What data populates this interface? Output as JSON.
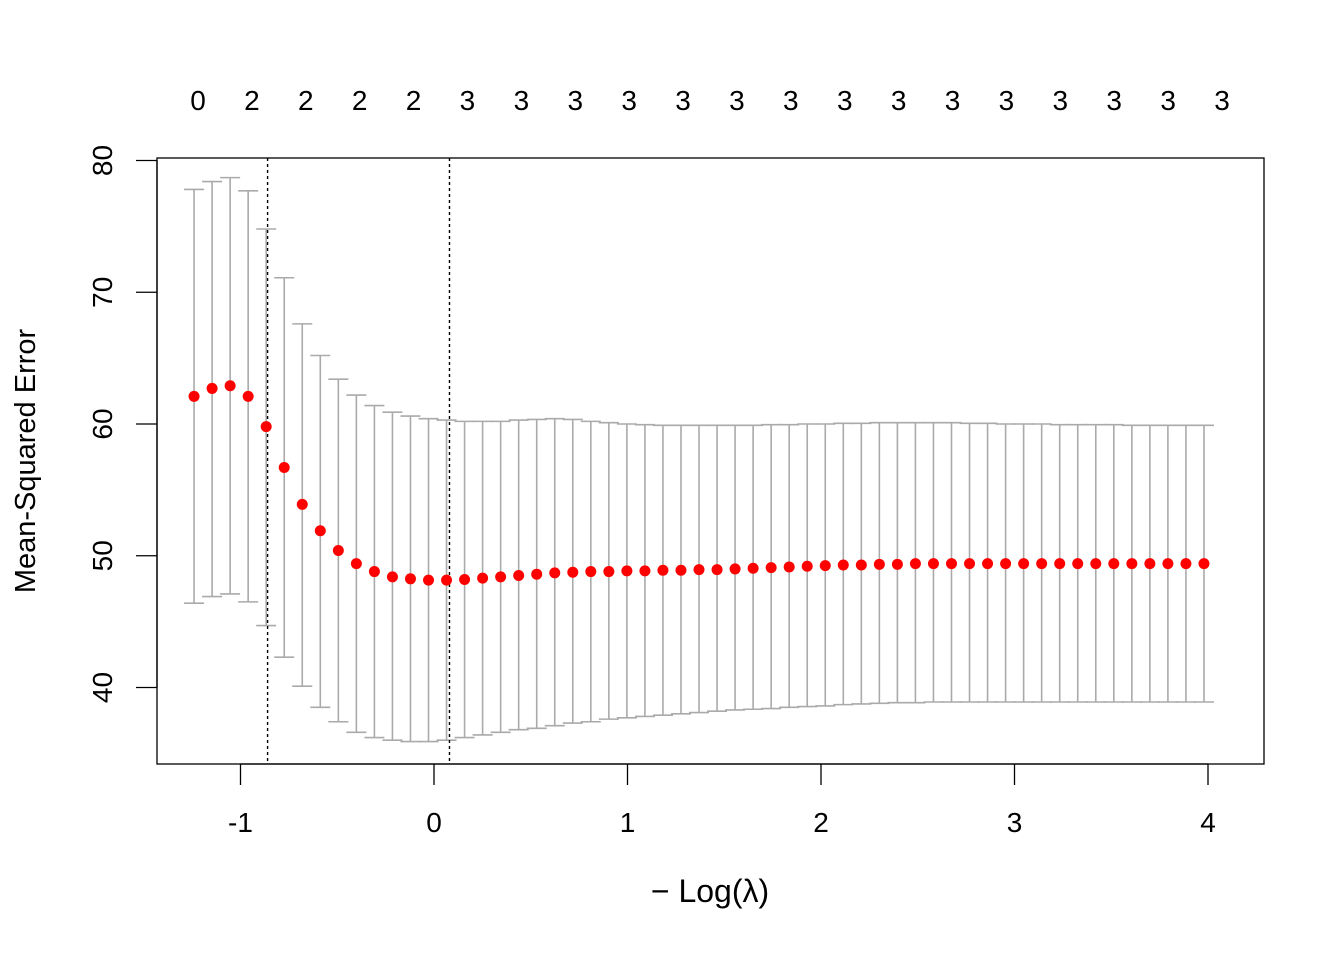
{
  "chart_data": {
    "type": "scatter",
    "xlabel": "− Log(λ)",
    "ylabel": "Mean-Squared Error",
    "xlim": [
      -1.24,
      4.1
    ],
    "ylim": [
      34.5,
      80
    ],
    "x_ticks": [
      -1,
      0,
      1,
      2,
      3,
      4
    ],
    "x_tick_labels": [
      "-1",
      "0",
      "1",
      "2",
      "3",
      "4"
    ],
    "y_ticks": [
      40,
      50,
      60,
      70,
      80
    ],
    "y_tick_labels": [
      "40",
      "50",
      "60",
      "70",
      "80"
    ],
    "top_axis_labels": [
      "0",
      "2",
      "2",
      "2",
      "2",
      "3",
      "3",
      "3",
      "3",
      "3",
      "3",
      "3",
      "3",
      "3",
      "3",
      "3",
      "3",
      "3",
      "3",
      "3"
    ],
    "vlines": [
      -0.86,
      0.08
    ],
    "point_color": "#ff0000",
    "errorbar_color": "#aaaaaa",
    "x_start": -1.24,
    "x_step": 0.0932,
    "series": [
      {
        "mean": [
          62.1,
          62.7,
          62.9,
          62.1,
          59.8,
          56.7,
          53.9,
          51.9,
          50.4,
          49.4,
          48.8,
          48.4,
          48.25,
          48.15,
          48.15,
          48.2,
          48.3,
          48.4,
          48.5,
          48.6,
          48.7,
          48.75,
          48.8,
          48.8,
          48.85,
          48.85,
          48.9,
          48.9,
          48.95,
          48.95,
          49.0,
          49.05,
          49.1,
          49.15,
          49.2,
          49.25,
          49.3,
          49.3,
          49.35,
          49.35,
          49.4,
          49.4,
          49.4,
          49.4,
          49.4,
          49.4,
          49.4,
          49.4,
          49.4,
          49.4,
          49.4,
          49.4,
          49.4,
          49.4,
          49.4,
          49.4,
          49.4
        ],
        "upper": [
          77.8,
          78.4,
          78.7,
          77.7,
          74.8,
          71.1,
          67.6,
          65.2,
          63.4,
          62.2,
          61.4,
          60.9,
          60.6,
          60.4,
          60.3,
          60.2,
          60.2,
          60.2,
          60.3,
          60.35,
          60.4,
          60.35,
          60.2,
          60.1,
          60.0,
          59.95,
          59.9,
          59.9,
          59.9,
          59.9,
          59.9,
          59.9,
          59.95,
          59.95,
          60.0,
          60.0,
          60.05,
          60.05,
          60.1,
          60.1,
          60.1,
          60.1,
          60.1,
          60.05,
          60.05,
          60.0,
          60.0,
          60.0,
          59.95,
          59.95,
          59.95,
          59.95,
          59.9,
          59.9,
          59.9,
          59.9,
          59.9
        ],
        "lower": [
          46.4,
          46.9,
          47.1,
          46.5,
          44.7,
          42.3,
          40.1,
          38.5,
          37.4,
          36.6,
          36.2,
          36.0,
          35.9,
          35.9,
          36.0,
          36.2,
          36.4,
          36.6,
          36.8,
          36.9,
          37.1,
          37.3,
          37.4,
          37.6,
          37.7,
          37.8,
          37.9,
          38.0,
          38.1,
          38.2,
          38.3,
          38.35,
          38.4,
          38.5,
          38.55,
          38.6,
          38.7,
          38.75,
          38.8,
          38.85,
          38.85,
          38.9,
          38.9,
          38.9,
          38.9,
          38.9,
          38.9,
          38.9,
          38.9,
          38.9,
          38.9,
          38.9,
          38.9,
          38.9,
          38.9,
          38.9,
          38.9
        ]
      }
    ]
  }
}
